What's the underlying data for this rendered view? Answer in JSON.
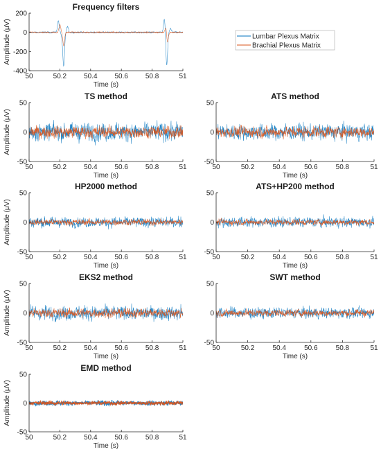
{
  "legend": [
    {
      "name": "Lumbar Plexus Matrix",
      "color": "#0072BD"
    },
    {
      "name": "Brachial Plexus Matrix",
      "color": "#D95319"
    }
  ],
  "chart_data": [
    {
      "type": "line",
      "title": "Frequency filters",
      "xlabel": "Time (s)",
      "ylabel": "Amplitude (μV)",
      "xlim": [
        50,
        51
      ],
      "ylim": [
        -400,
        200
      ],
      "xticks": [
        "50",
        "50.2",
        "50.4",
        "50.6",
        "50.8",
        "51"
      ],
      "yticks": [
        "200",
        "0",
        "-200",
        "-400"
      ],
      "series": [
        {
          "name": "Lumbar Plexus Matrix",
          "color": "#0072BD",
          "noise_amplitude": 8,
          "features": [
            {
              "t": 50.19,
              "value": 120
            },
            {
              "t": 50.215,
              "value": -40
            },
            {
              "t": 50.225,
              "value": -345
            },
            {
              "t": 50.25,
              "value": 60
            },
            {
              "t": 50.88,
              "value": 140
            },
            {
              "t": 50.895,
              "value": -345
            },
            {
              "t": 50.92,
              "value": 40
            }
          ]
        },
        {
          "name": "Brachial Plexus Matrix",
          "color": "#D95319",
          "noise_amplitude": 8,
          "features": [
            {
              "t": 50.2,
              "value": 80
            },
            {
              "t": 50.225,
              "value": -140
            },
            {
              "t": 50.89,
              "value": 60
            },
            {
              "t": 50.9,
              "value": -110
            }
          ]
        }
      ]
    },
    {
      "type": "line",
      "title": "TS method",
      "xlabel": "Time (s)",
      "ylabel": "Amplitude (μV)",
      "xlim": [
        50,
        51
      ],
      "ylim": [
        -50,
        50
      ],
      "xticks": [
        "50",
        "50.2",
        "50.4",
        "50.6",
        "50.8",
        "51"
      ],
      "yticks": [
        "50",
        "0",
        "-50"
      ],
      "series": [
        {
          "name": "Lumbar Plexus Matrix",
          "color": "#0072BD",
          "noise_amplitude": 18
        },
        {
          "name": "Brachial Plexus Matrix",
          "color": "#D95319",
          "noise_amplitude": 12
        }
      ]
    },
    {
      "type": "line",
      "title": "ATS method",
      "xlabel": "Time (s)",
      "ylabel": "",
      "xlim": [
        50,
        51
      ],
      "ylim": [
        -50,
        50
      ],
      "xticks": [
        "50",
        "50.2",
        "50.4",
        "50.6",
        "50.8",
        "51"
      ],
      "yticks": [
        "50",
        "0",
        "-50"
      ],
      "series": [
        {
          "name": "Lumbar Plexus Matrix",
          "color": "#0072BD",
          "noise_amplitude": 16
        },
        {
          "name": "Brachial Plexus Matrix",
          "color": "#D95319",
          "noise_amplitude": 11
        }
      ]
    },
    {
      "type": "line",
      "title": "HP2000 method",
      "xlabel": "Time (s)",
      "ylabel": "Amplitude (μV)",
      "xlim": [
        50,
        51
      ],
      "ylim": [
        -50,
        50
      ],
      "xticks": [
        "50",
        "50.2",
        "50.4",
        "50.6",
        "50.8",
        "51"
      ],
      "yticks": [
        "50",
        "0",
        "-50"
      ],
      "series": [
        {
          "name": "Lumbar Plexus Matrix",
          "color": "#0072BD",
          "noise_amplitude": 10
        },
        {
          "name": "Brachial Plexus Matrix",
          "color": "#D95319",
          "noise_amplitude": 6
        }
      ]
    },
    {
      "type": "line",
      "title": "ATS+HP200 method",
      "xlabel": "Time (s)",
      "ylabel": "",
      "xlim": [
        50,
        51
      ],
      "ylim": [
        -50,
        50
      ],
      "xticks": [
        "50",
        "50.2",
        "50.4",
        "50.6",
        "50.8",
        "51"
      ],
      "yticks": [
        "50",
        "0",
        "-50"
      ],
      "series": [
        {
          "name": "Lumbar Plexus Matrix",
          "color": "#0072BD",
          "noise_amplitude": 10
        },
        {
          "name": "Brachial Plexus Matrix",
          "color": "#D95319",
          "noise_amplitude": 6
        }
      ]
    },
    {
      "type": "line",
      "title": "EKS2 method",
      "xlabel": "Time (s)",
      "ylabel": "Amplitude (μV)",
      "xlim": [
        50,
        51
      ],
      "ylim": [
        -50,
        50
      ],
      "xticks": [
        "50",
        "50.2",
        "50.4",
        "50.6",
        "50.8",
        "51"
      ],
      "yticks": [
        "50",
        "0",
        "-50"
      ],
      "series": [
        {
          "name": "Lumbar Plexus Matrix",
          "color": "#0072BD",
          "noise_amplitude": 14
        },
        {
          "name": "Brachial Plexus Matrix",
          "color": "#D95319",
          "noise_amplitude": 9
        }
      ]
    },
    {
      "type": "line",
      "title": "SWT method",
      "xlabel": "Time (s)",
      "ylabel": "",
      "xlim": [
        50,
        51
      ],
      "ylim": [
        -50,
        50
      ],
      "xticks": [
        "50",
        "50.2",
        "50.4",
        "50.6",
        "50.8",
        "51"
      ],
      "yticks": [
        "50",
        "0",
        "-50"
      ],
      "series": [
        {
          "name": "Lumbar Plexus Matrix",
          "color": "#0072BD",
          "noise_amplitude": 11
        },
        {
          "name": "Brachial Plexus Matrix",
          "color": "#D95319",
          "noise_amplitude": 7
        }
      ]
    },
    {
      "type": "line",
      "title": "EMD method",
      "xlabel": "Time (s)",
      "ylabel": "Amplitude (μV)",
      "xlim": [
        50,
        51
      ],
      "ylim": [
        -50,
        50
      ],
      "xticks": [
        "50",
        "50.2",
        "50.4",
        "50.6",
        "50.8",
        "51"
      ],
      "yticks": [
        "50",
        "0",
        "-50"
      ],
      "series": [
        {
          "name": "Lumbar Plexus Matrix",
          "color": "#0072BD",
          "noise_amplitude": 5
        },
        {
          "name": "Brachial Plexus Matrix",
          "color": "#D95319",
          "noise_amplitude": 4
        }
      ]
    }
  ]
}
